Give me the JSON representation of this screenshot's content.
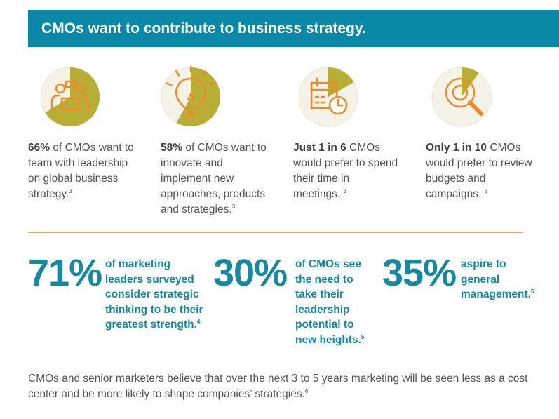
{
  "header": {
    "title": "CMOs want to contribute to business strategy."
  },
  "stats": [
    {
      "share": 66,
      "lead": "66%",
      "text": "of CMOs want to team with leadership on global business strategy.",
      "note": "3"
    },
    {
      "share": 58,
      "lead": "58%",
      "text": "of CMOs want to innovate and implement new approaches, products and strategies.",
      "note": "3"
    },
    {
      "share": 16.7,
      "lead": "Just 1 in 6",
      "text": "CMOs would prefer to spend their time in meetings.",
      "note": "3"
    },
    {
      "share": 10,
      "lead": "Only 1 in 10",
      "text": "CMOs would prefer to review budgets and campaigns.",
      "note": "3"
    }
  ],
  "big_stats": [
    {
      "number": "71%",
      "text": "of marketing leaders surveyed consider strategic thinking to be their greatest strength.",
      "note": "4"
    },
    {
      "number": "30%",
      "text": "of CMOs see the need to take their leadership potential to new heights.",
      "note": "5"
    },
    {
      "number": "35%",
      "text": "aspire to general management.",
      "note": "5"
    }
  ],
  "footer": {
    "text": "CMOs and senior marketers believe that over the next 3 to 5 years marketing will be seen less as a cost center and be more likely to shape companies’ strategies.",
    "note": "6"
  }
}
